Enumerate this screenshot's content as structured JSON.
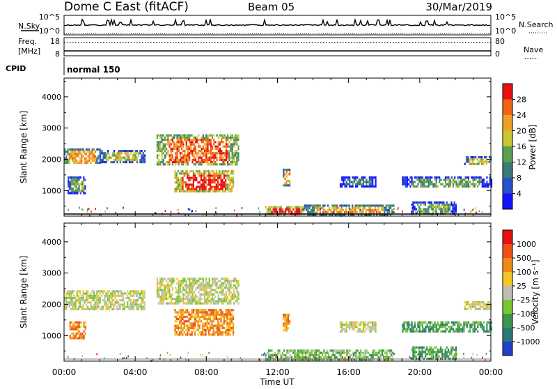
{
  "header": {
    "station": "Dome C East (fitACF)",
    "beam": "Beam 05",
    "date": "30/Mar/2019"
  },
  "top_panels": {
    "nsky_label": "N.Sky",
    "nsky_ticks": [
      "10^5",
      "10^0"
    ],
    "nsearch_label": "N.Search",
    "nsearch_ticks": [
      "10^5",
      "10^0"
    ],
    "freq_label": "Freq.",
    "freq_unit": "[MHz]",
    "freq_ticks": [
      "18",
      "8"
    ],
    "nave_label": "Nave",
    "nave_ticks": [
      "80",
      "0"
    ],
    "cpid_label": "CPID",
    "cpid_value": "normal 150"
  },
  "chart_data": [
    {
      "type": "heatmap",
      "name": "power-panel",
      "ylabel": "Slant Range [km]",
      "xlabel": "Time UT",
      "x_ticks": [
        "00:00",
        "04:00",
        "08:00",
        "12:00",
        "16:00",
        "20:00",
        "00:00"
      ],
      "xlim_hours": [
        0,
        24
      ],
      "ylim_km": [
        180,
        4600
      ],
      "y_ticks": [
        1000,
        2000,
        3000,
        4000
      ],
      "colorbar": {
        "label": "Power [dB]",
        "ticks": [
          "4",
          "8",
          "12",
          "16",
          "20",
          "24",
          "28"
        ],
        "colors": [
          "#1414ff",
          "#2850c8",
          "#3a7a78",
          "#5aa050",
          "#c8c832",
          "#f0a028",
          "#f06414",
          "#e81010"
        ]
      },
      "regions": [
        {
          "t0": 0.0,
          "t1": 2.0,
          "r0": 1850,
          "r1": 2350,
          "level": 5
        },
        {
          "t0": 2.0,
          "t1": 4.5,
          "r0": 1900,
          "r1": 2300,
          "level": 4
        },
        {
          "t0": 5.2,
          "t1": 9.8,
          "r0": 1800,
          "r1": 2800,
          "level": 6
        },
        {
          "t0": 6.2,
          "t1": 9.5,
          "r0": 1000,
          "r1": 1650,
          "level": 7
        },
        {
          "t0": 0.2,
          "t1": 1.2,
          "r0": 900,
          "r1": 1450,
          "level": 3
        },
        {
          "t0": 11.3,
          "t1": 13.5,
          "r0": 230,
          "r1": 500,
          "level": 7
        },
        {
          "t0": 13.5,
          "t1": 18.5,
          "r0": 250,
          "r1": 550,
          "level": 5
        },
        {
          "t0": 15.5,
          "t1": 17.5,
          "r0": 1150,
          "r1": 1450,
          "level": 2
        },
        {
          "t0": 19.0,
          "t1": 24.0,
          "r0": 1100,
          "r1": 1450,
          "level": 3
        },
        {
          "t0": 22.5,
          "t1": 24.0,
          "r0": 1850,
          "r1": 2100,
          "level": 4
        },
        {
          "t0": 19.5,
          "t1": 22.0,
          "r0": 230,
          "r1": 650,
          "level": 3
        },
        {
          "t0": 12.3,
          "t1": 12.7,
          "r0": 1150,
          "r1": 1700,
          "level": 5
        }
      ]
    },
    {
      "type": "heatmap",
      "name": "velocity-panel",
      "ylabel": "Slant Range [km]",
      "xlabel": "Time UT",
      "x_ticks": [
        "00:00",
        "04:00",
        "08:00",
        "12:00",
        "16:00",
        "20:00",
        "00:00"
      ],
      "xlim_hours": [
        0,
        24
      ],
      "ylim_km": [
        180,
        4600
      ],
      "y_ticks": [
        1000,
        2000,
        3000,
        4000
      ],
      "colorbar": {
        "label": "Velocity [m s⁻¹]",
        "ticks": [
          "1000",
          "500",
          "100",
          "25",
          "–25",
          "–100",
          "–500",
          "–1000"
        ],
        "colors": [
          "#2040c8",
          "#287878",
          "#3c9650",
          "#78c832",
          "#bebeb4",
          "#f0c828",
          "#f08c14",
          "#f05014",
          "#e81010"
        ]
      },
      "regions": [
        {
          "t0": 0.0,
          "t1": 4.5,
          "r0": 1850,
          "r1": 2450,
          "level": 4
        },
        {
          "t0": 5.2,
          "t1": 9.8,
          "r0": 2050,
          "r1": 2850,
          "level": 4
        },
        {
          "t0": 6.2,
          "t1": 9.5,
          "r0": 1000,
          "r1": 1850,
          "level": 6
        },
        {
          "t0": 0.3,
          "t1": 1.2,
          "r0": 900,
          "r1": 1450,
          "level": 6
        },
        {
          "t0": 11.3,
          "t1": 18.5,
          "r0": 230,
          "r1": 550,
          "level": 3
        },
        {
          "t0": 15.5,
          "t1": 17.5,
          "r0": 1150,
          "r1": 1450,
          "level": 4
        },
        {
          "t0": 19.0,
          "t1": 24.0,
          "r0": 1100,
          "r1": 1450,
          "level": 2
        },
        {
          "t0": 22.5,
          "t1": 24.0,
          "r0": 1850,
          "r1": 2100,
          "level": 4
        },
        {
          "t0": 19.5,
          "t1": 22.0,
          "r0": 230,
          "r1": 650,
          "level": 2
        },
        {
          "t0": 12.3,
          "t1": 12.7,
          "r0": 1150,
          "r1": 1700,
          "level": 6
        }
      ]
    }
  ]
}
